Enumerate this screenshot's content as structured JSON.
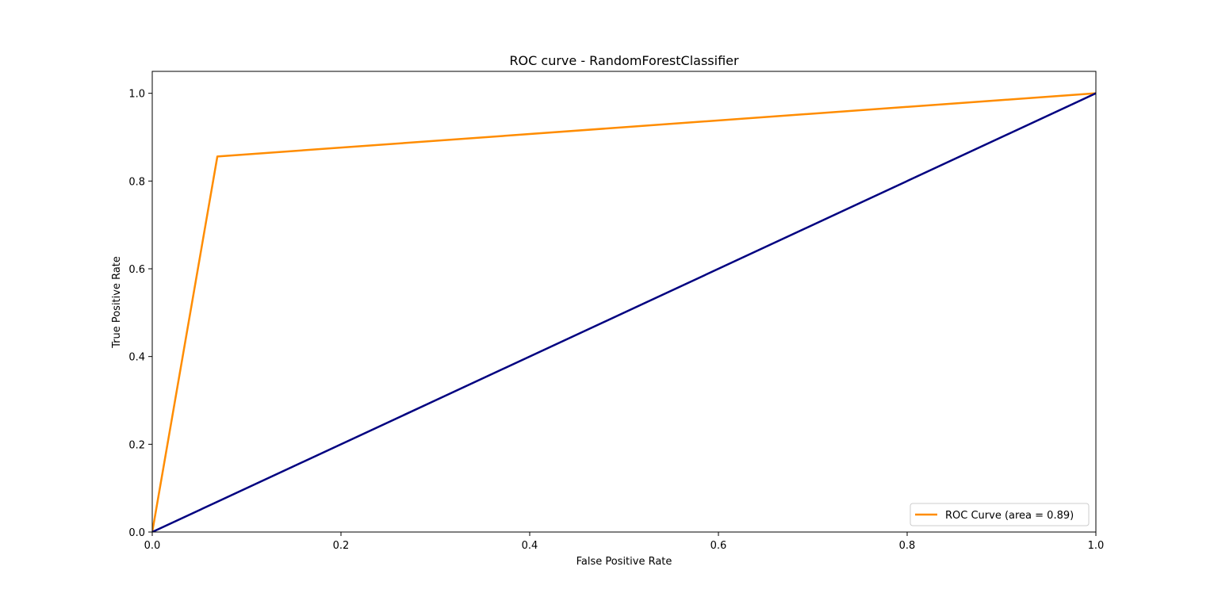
{
  "chart_data": {
    "type": "line",
    "title": "ROC curve - RandomForestClassifier",
    "xlabel": "False Positive Rate",
    "ylabel": "True Positive Rate",
    "xlim": [
      0.0,
      1.0
    ],
    "ylim": [
      0.0,
      1.05
    ],
    "x_ticks": [
      0.0,
      0.2,
      0.4,
      0.6,
      0.8,
      1.0
    ],
    "y_ticks": [
      0.0,
      0.2,
      0.4,
      0.6,
      0.8,
      1.0
    ],
    "x_tick_labels": [
      "0.0",
      "0.2",
      "0.4",
      "0.6",
      "0.8",
      "1.0"
    ],
    "y_tick_labels": [
      "0.0",
      "0.2",
      "0.4",
      "0.6",
      "0.8",
      "1.0"
    ],
    "grid": false,
    "legend_position": "lower-right",
    "series": [
      {
        "name": "ROC Curve (area = 0.89)",
        "color": "#ff8c00",
        "x": [
          0.0,
          0.069,
          1.0
        ],
        "y": [
          0.0,
          0.856,
          1.0
        ]
      },
      {
        "color": "#000080",
        "x": [
          0.0,
          1.0
        ],
        "y": [
          0.0,
          1.0
        ]
      }
    ]
  }
}
